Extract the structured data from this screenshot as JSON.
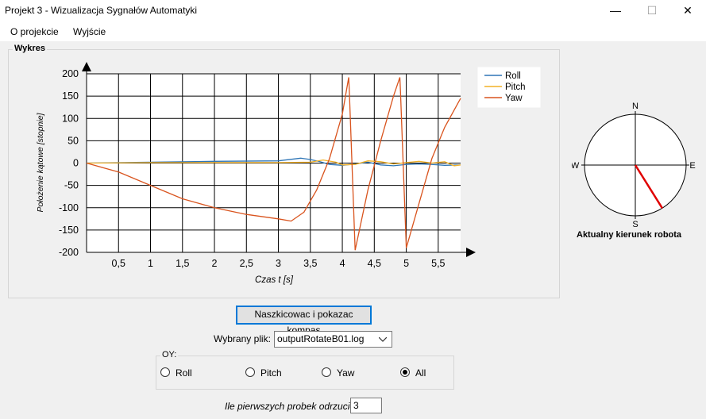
{
  "window": {
    "title": "Projekt 3 - Wizualizacja Sygnałów Automatyki",
    "minimize": "—",
    "maximize": "☐",
    "close": "✕"
  },
  "menu": {
    "items": [
      "O projekcie",
      "Wyjście"
    ]
  },
  "chart_group": {
    "title": "Wykres"
  },
  "chart_data": {
    "type": "line",
    "xlabel": "Czas t [s]",
    "ylabel": "Położenie kątowe [stopnie]",
    "xlim": [
      0,
      5.85
    ],
    "ylim": [
      -200,
      200
    ],
    "x_ticks": [
      "0,5",
      "1",
      "1,5",
      "2",
      "2,5",
      "3",
      "3,5",
      "4",
      "4,5",
      "5",
      "5,5"
    ],
    "x_tick_values": [
      0.5,
      1,
      1.5,
      2,
      2.5,
      3,
      3.5,
      4,
      4.5,
      5,
      5.5
    ],
    "y_ticks": [
      200,
      150,
      100,
      50,
      0,
      -50,
      -100,
      -150,
      -200
    ],
    "grid": true,
    "legend_position": "top-right",
    "series": [
      {
        "name": "Roll",
        "color": "#2e75b6",
        "x": [
          0,
          1,
          2,
          3,
          3.35,
          3.5,
          3.65,
          3.8,
          4,
          4.2,
          4.4,
          4.6,
          4.8,
          5,
          5.2,
          5.4,
          5.6,
          5.85
        ],
        "y": [
          0,
          2,
          4,
          5,
          11,
          8,
          3,
          -3,
          -5,
          -2,
          2,
          -4,
          -6,
          -3,
          -2,
          -3,
          -5,
          -4
        ]
      },
      {
        "name": "Pitch",
        "color": "#f2b127",
        "x": [
          0,
          1,
          2,
          3,
          3.5,
          3.7,
          3.9,
          4,
          4.2,
          4.4,
          4.6,
          4.8,
          5,
          5.2,
          5.4,
          5.6,
          5.75,
          5.85
        ],
        "y": [
          0,
          1,
          1,
          1,
          2,
          7,
          2,
          -4,
          -3,
          5,
          3,
          -2,
          1,
          4,
          0,
          3,
          -6,
          -4
        ]
      },
      {
        "name": "Yaw",
        "color": "#d9541e",
        "x": [
          0,
          0.5,
          1,
          1.5,
          2,
          2.5,
          3,
          3.2,
          3.4,
          3.6,
          3.8,
          4,
          4.1,
          4.11,
          4.2,
          4.4,
          4.6,
          4.8,
          4.9,
          4.91,
          5.0,
          5.2,
          5.4,
          5.6,
          5.85
        ],
        "y": [
          0,
          -20,
          -50,
          -80,
          -100,
          -115,
          -125,
          -130,
          -110,
          -60,
          10,
          110,
          192,
          160,
          -195,
          -60,
          50,
          150,
          192,
          160,
          -190,
          -90,
          10,
          80,
          145
        ]
      }
    ]
  },
  "compass": {
    "labels": {
      "north": "N",
      "south": "S",
      "east": "E",
      "west": "W"
    },
    "heading_deg": 148,
    "needle_color": "#e00000",
    "caption": "Aktualny kierunek robota"
  },
  "controls": {
    "draw_button": "Naszkicowac i pokazac kompas",
    "file_label": "Wybrany plik:",
    "file_value": "outputRotateB01.log",
    "oy_title": "OY:",
    "radios": [
      {
        "label": "Roll",
        "checked": false
      },
      {
        "label": "Pitch",
        "checked": false
      },
      {
        "label": "Yaw",
        "checked": false
      },
      {
        "label": "All",
        "checked": true
      }
    ],
    "skip_label": "Ile pierwszych probek odrzucic:",
    "skip_value": "3"
  }
}
